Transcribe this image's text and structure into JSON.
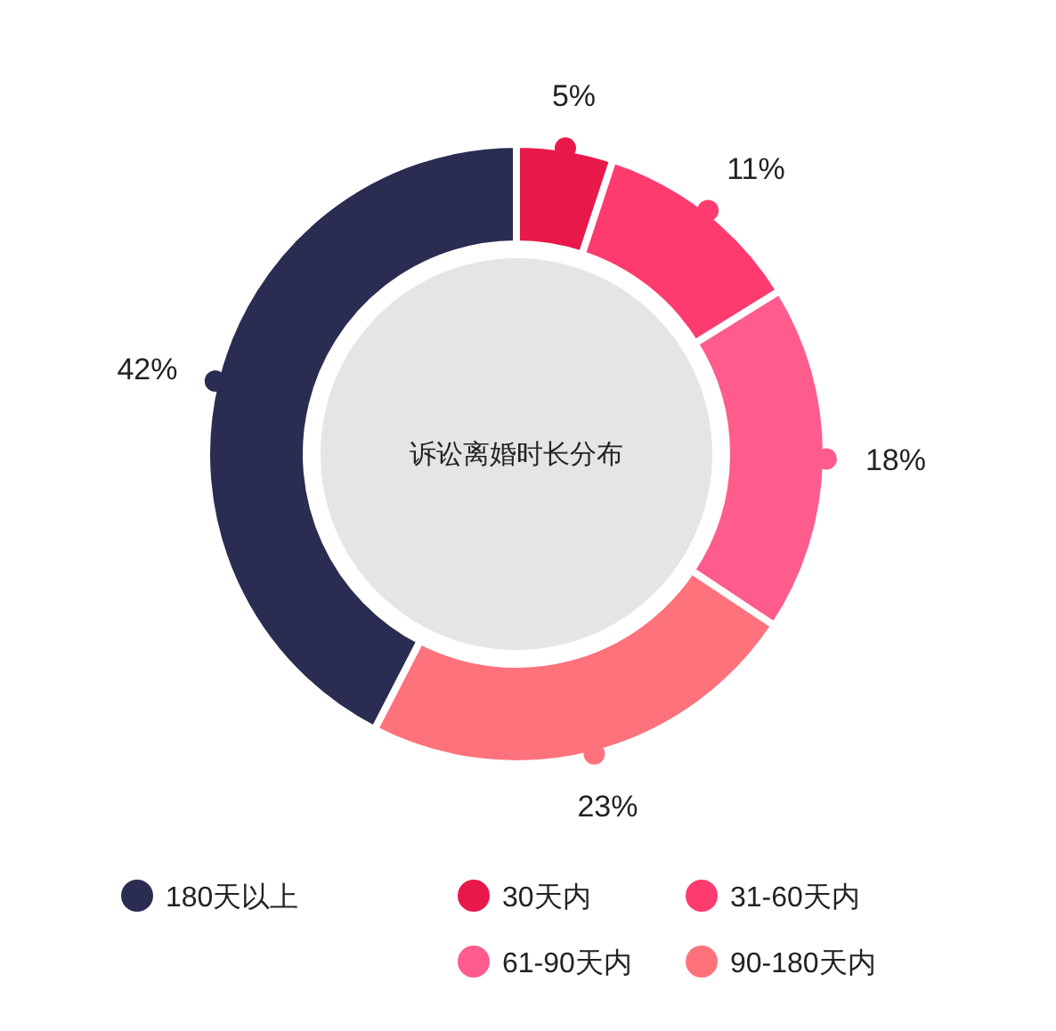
{
  "chart_data": {
    "type": "donut",
    "title": "诉讼离婚时长分布",
    "categories": [
      "30天内",
      "31-60天内",
      "61-90天内",
      "90-180天内",
      "180天以上"
    ],
    "values": [
      5,
      11,
      18,
      23,
      42
    ],
    "colors": [
      "#e8194a",
      "#fe3b6e",
      "#fe5c8c",
      "#fe727c",
      "#2a2c51"
    ],
    "value_labels": [
      "5%",
      "11%",
      "18%",
      "23%",
      "42%"
    ],
    "legend": "bottom"
  }
}
